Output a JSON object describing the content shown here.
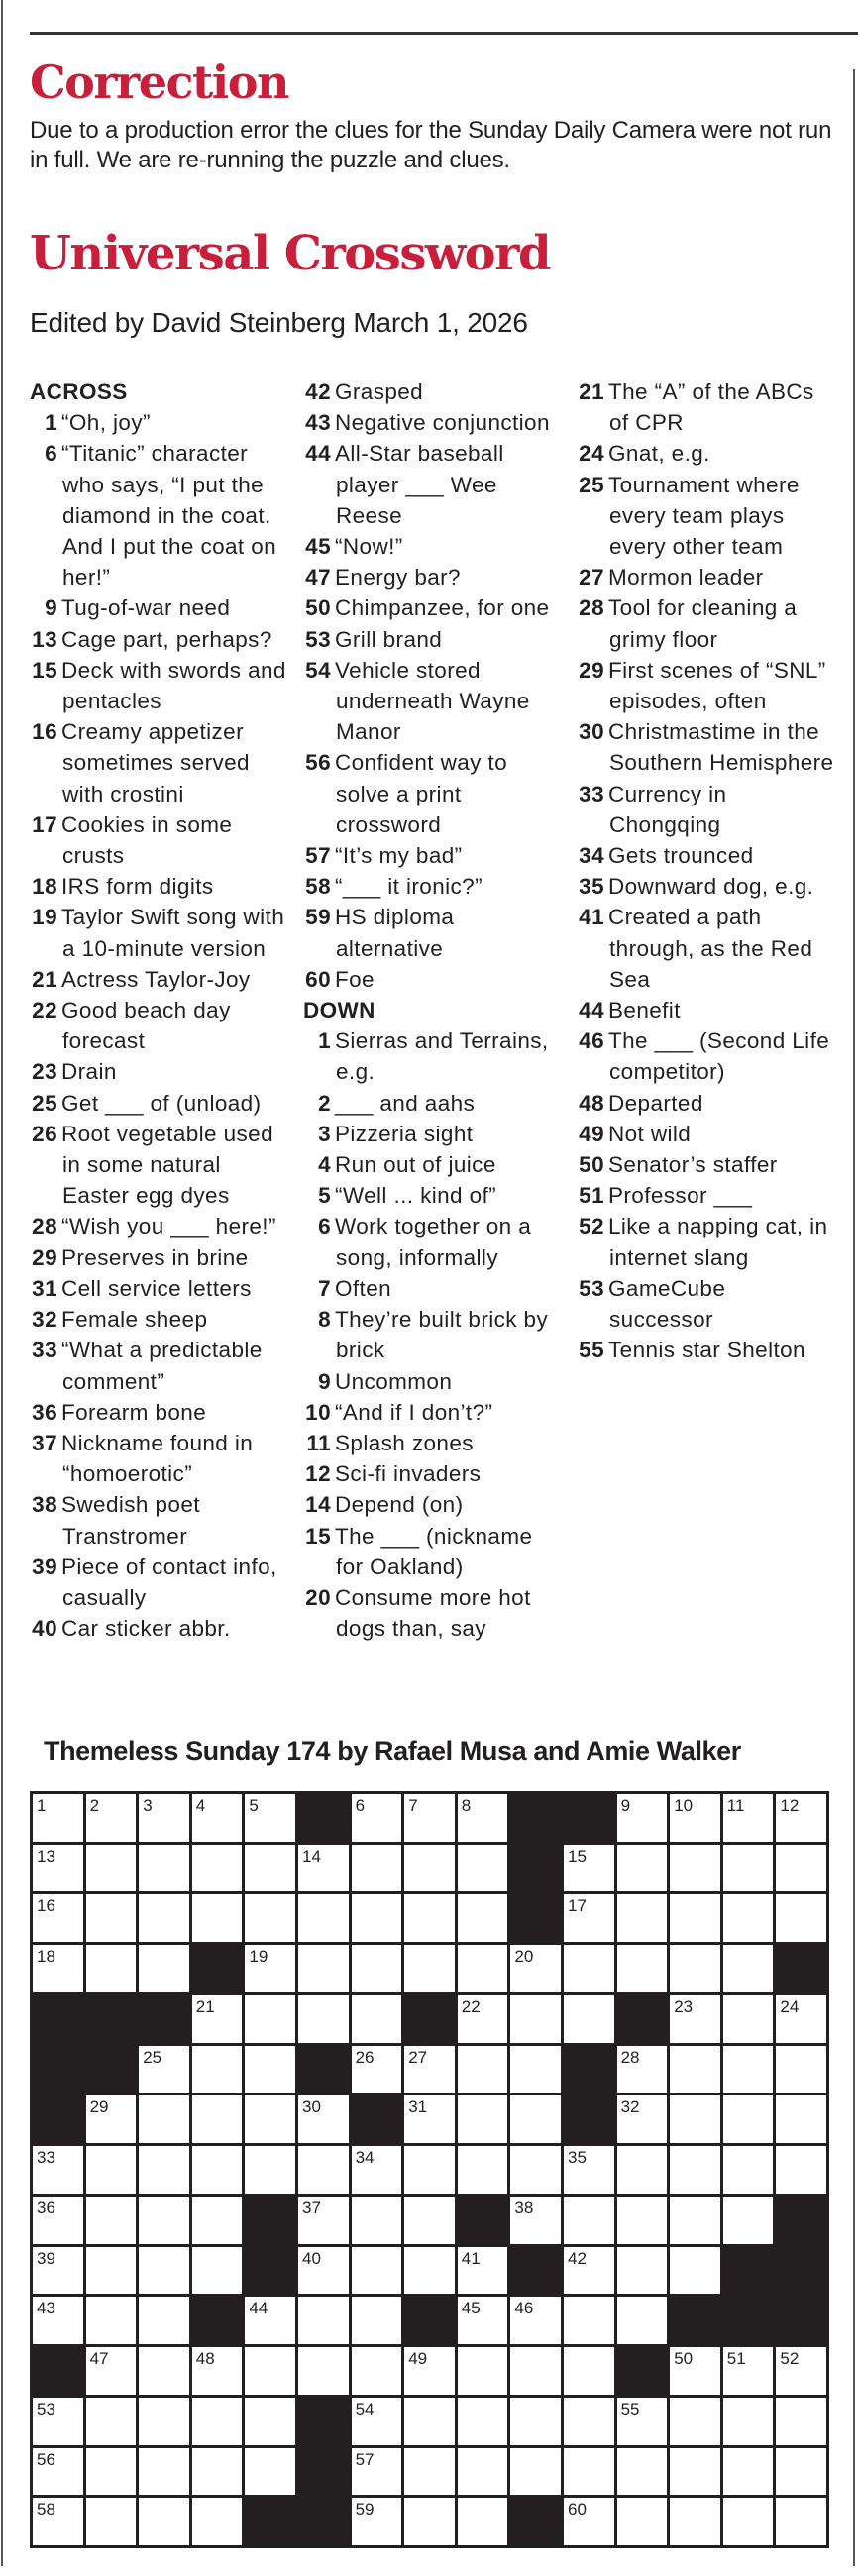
{
  "colors": {
    "accent": "#c8203c",
    "ink": "#231f20"
  },
  "correction": {
    "title": "Correction",
    "body": "Due to a production error the clues for the Sunday Daily Camera were not run in full. We are re-running the puzzle and clues."
  },
  "crossword": {
    "title": "Universal Crossword",
    "byline": "Edited by David Steinberg March 1, 2026",
    "across_label": "ACROSS",
    "down_label": "DOWN",
    "across": [
      {
        "n": "1",
        "t": "“Oh, joy”"
      },
      {
        "n": "6",
        "t": "“Titanic” character who says, “I put the diamond in the coat. And I put the coat on her!”"
      },
      {
        "n": "9",
        "t": "Tug-of-war need"
      },
      {
        "n": "13",
        "t": "Cage part, perhaps?"
      },
      {
        "n": "15",
        "t": "Deck with swords and pentacles"
      },
      {
        "n": "16",
        "t": "Creamy appetizer sometimes served with crostini"
      },
      {
        "n": "17",
        "t": "Cookies in some crusts"
      },
      {
        "n": "18",
        "t": "IRS form digits"
      },
      {
        "n": "19",
        "t": "Taylor Swift song with a 10-minute version"
      },
      {
        "n": "21",
        "t": "Actress Taylor-Joy"
      },
      {
        "n": "22",
        "t": "Good beach day forecast"
      },
      {
        "n": "23",
        "t": "Drain"
      },
      {
        "n": "25",
        "t": "Get ___ of (unload)"
      },
      {
        "n": "26",
        "t": "Root vegetable used in some natural Easter egg dyes"
      },
      {
        "n": "28",
        "t": "“Wish you ___ here!”"
      },
      {
        "n": "29",
        "t": "Preserves in brine"
      },
      {
        "n": "31",
        "t": "Cell service letters"
      },
      {
        "n": "32",
        "t": "Female sheep"
      },
      {
        "n": "33",
        "t": "“What a predictable comment”"
      },
      {
        "n": "36",
        "t": "Forearm bone"
      },
      {
        "n": "37",
        "t": "Nickname found in “homoerotic”"
      },
      {
        "n": "38",
        "t": "Swedish poet Transtromer"
      },
      {
        "n": "39",
        "t": "Piece of contact info, casually"
      },
      {
        "n": "40",
        "t": "Car sticker abbr."
      },
      {
        "n": "42",
        "t": "Grasped"
      },
      {
        "n": "43",
        "t": "Negative conjunction"
      },
      {
        "n": "44",
        "t": "All-Star baseball player ___ Wee Reese"
      },
      {
        "n": "45",
        "t": "“Now!”"
      },
      {
        "n": "47",
        "t": "Energy bar?"
      },
      {
        "n": "50",
        "t": "Chimpanzee, for one"
      },
      {
        "n": "53",
        "t": "Grill brand"
      },
      {
        "n": "54",
        "t": "Vehicle stored underneath Wayne Manor"
      },
      {
        "n": "56",
        "t": "Confident way to solve a print crossword"
      },
      {
        "n": "57",
        "t": "“It’s my bad”"
      },
      {
        "n": "58",
        "t": "“___ it ironic?”"
      },
      {
        "n": "59",
        "t": "HS diploma alternative"
      },
      {
        "n": "60",
        "t": "Foe"
      }
    ],
    "down": [
      {
        "n": "1",
        "t": "Sierras and Terrains, e.g."
      },
      {
        "n": "2",
        "t": "___ and aahs"
      },
      {
        "n": "3",
        "t": "Pizzeria sight"
      },
      {
        "n": "4",
        "t": "Run out of juice"
      },
      {
        "n": "5",
        "t": "“Well ... kind of”"
      },
      {
        "n": "6",
        "t": "Work together on a song, informally"
      },
      {
        "n": "7",
        "t": "Often"
      },
      {
        "n": "8",
        "t": "They’re built brick by brick"
      },
      {
        "n": "9",
        "t": "Uncommon"
      },
      {
        "n": "10",
        "t": "“And if I don’t?”"
      },
      {
        "n": "11",
        "t": "Splash zones"
      },
      {
        "n": "12",
        "t": "Sci-fi invaders"
      },
      {
        "n": "14",
        "t": "Depend (on)"
      },
      {
        "n": "15",
        "t": "The ___ (nickname for Oakland)"
      },
      {
        "n": "20",
        "t": "Consume more hot dogs than, say"
      },
      {
        "n": "21",
        "t": "The “A” of the ABCs of CPR"
      },
      {
        "n": "24",
        "t": "Gnat, e.g."
      },
      {
        "n": "25",
        "t": "Tournament where every team plays every other team"
      },
      {
        "n": "27",
        "t": "Mormon leader"
      },
      {
        "n": "28",
        "t": "Tool for cleaning a grimy floor"
      },
      {
        "n": "29",
        "t": "First scenes of “SNL” episodes, often"
      },
      {
        "n": "30",
        "t": "Christmastime in the Southern Hemisphere"
      },
      {
        "n": "33",
        "t": "Currency in Chongqing"
      },
      {
        "n": "34",
        "t": "Gets trounced"
      },
      {
        "n": "35",
        "t": "Downward dog, e.g."
      },
      {
        "n": "41",
        "t": "Created a path through, as the Red Sea"
      },
      {
        "n": "44",
        "t": "Benefit"
      },
      {
        "n": "46",
        "t": "The ___ (Second Life competitor)"
      },
      {
        "n": "48",
        "t": "Departed"
      },
      {
        "n": "49",
        "t": "Not wild"
      },
      {
        "n": "50",
        "t": "Senator’s staffer"
      },
      {
        "n": "51",
        "t": "Professor ___"
      },
      {
        "n": "52",
        "t": "Like a napping cat, in internet slang"
      },
      {
        "n": "53",
        "t": "GameCube successor"
      },
      {
        "n": "55",
        "t": "Tennis star Shelton"
      }
    ]
  },
  "puzzle": {
    "title": "Themeless Sunday 174 by Rafael Musa and Amie Walker",
    "grid": [
      [
        "1",
        "2",
        "3",
        "4",
        "5",
        "#",
        "6",
        "7",
        "8",
        "#",
        "#",
        "9",
        "10",
        "11",
        "12"
      ],
      [
        "13",
        "",
        "",
        "",
        "",
        "14",
        "",
        "",
        "",
        "#",
        "15",
        "",
        "",
        "",
        ""
      ],
      [
        "16",
        "",
        "",
        "",
        "",
        "",
        "",
        "",
        "",
        "#",
        "17",
        "",
        "",
        "",
        ""
      ],
      [
        "18",
        "",
        "",
        "#",
        "19",
        "",
        "",
        "",
        "",
        "20",
        "",
        "",
        "",
        "",
        "#"
      ],
      [
        "#",
        "#",
        "#",
        "21",
        "",
        "",
        "",
        "#",
        "22",
        "",
        "",
        "#",
        "23",
        "",
        "24"
      ],
      [
        "#",
        "#",
        "25",
        "",
        "",
        "#",
        "26",
        "27",
        "",
        "",
        "#",
        "28",
        "",
        "",
        ""
      ],
      [
        "#",
        "29",
        "",
        "",
        "",
        "30",
        "#",
        "31",
        "",
        "",
        "#",
        "32",
        "",
        "",
        ""
      ],
      [
        "33",
        "",
        "",
        "",
        "",
        "",
        "34",
        "",
        "",
        "",
        "35",
        "",
        "",
        "",
        ""
      ],
      [
        "36",
        "",
        "",
        "",
        "#",
        "37",
        "",
        "",
        "#",
        "38",
        "",
        "",
        "",
        "",
        "#"
      ],
      [
        "39",
        "",
        "",
        "",
        "#",
        "40",
        "",
        "",
        "41",
        "#",
        "42",
        "",
        "",
        "#",
        "#"
      ],
      [
        "43",
        "",
        "",
        "#",
        "44",
        "",
        "",
        "#",
        "45",
        "46",
        "",
        "",
        "#",
        "#",
        "#"
      ],
      [
        "#",
        "47",
        "",
        "48",
        "",
        "",
        "",
        "49",
        "",
        "",
        "",
        "#",
        "50",
        "51",
        "52"
      ],
      [
        "53",
        "",
        "",
        "",
        "",
        "#",
        "54",
        "",
        "",
        "",
        "",
        "55",
        "",
        "",
        ""
      ],
      [
        "56",
        "",
        "",
        "",
        "",
        "#",
        "57",
        "",
        "",
        "",
        "",
        "",
        "",
        "",
        ""
      ],
      [
        "58",
        "",
        "",
        "",
        "#",
        "#",
        "59",
        "",
        "",
        "#",
        "60",
        "",
        "",
        "",
        ""
      ]
    ]
  }
}
